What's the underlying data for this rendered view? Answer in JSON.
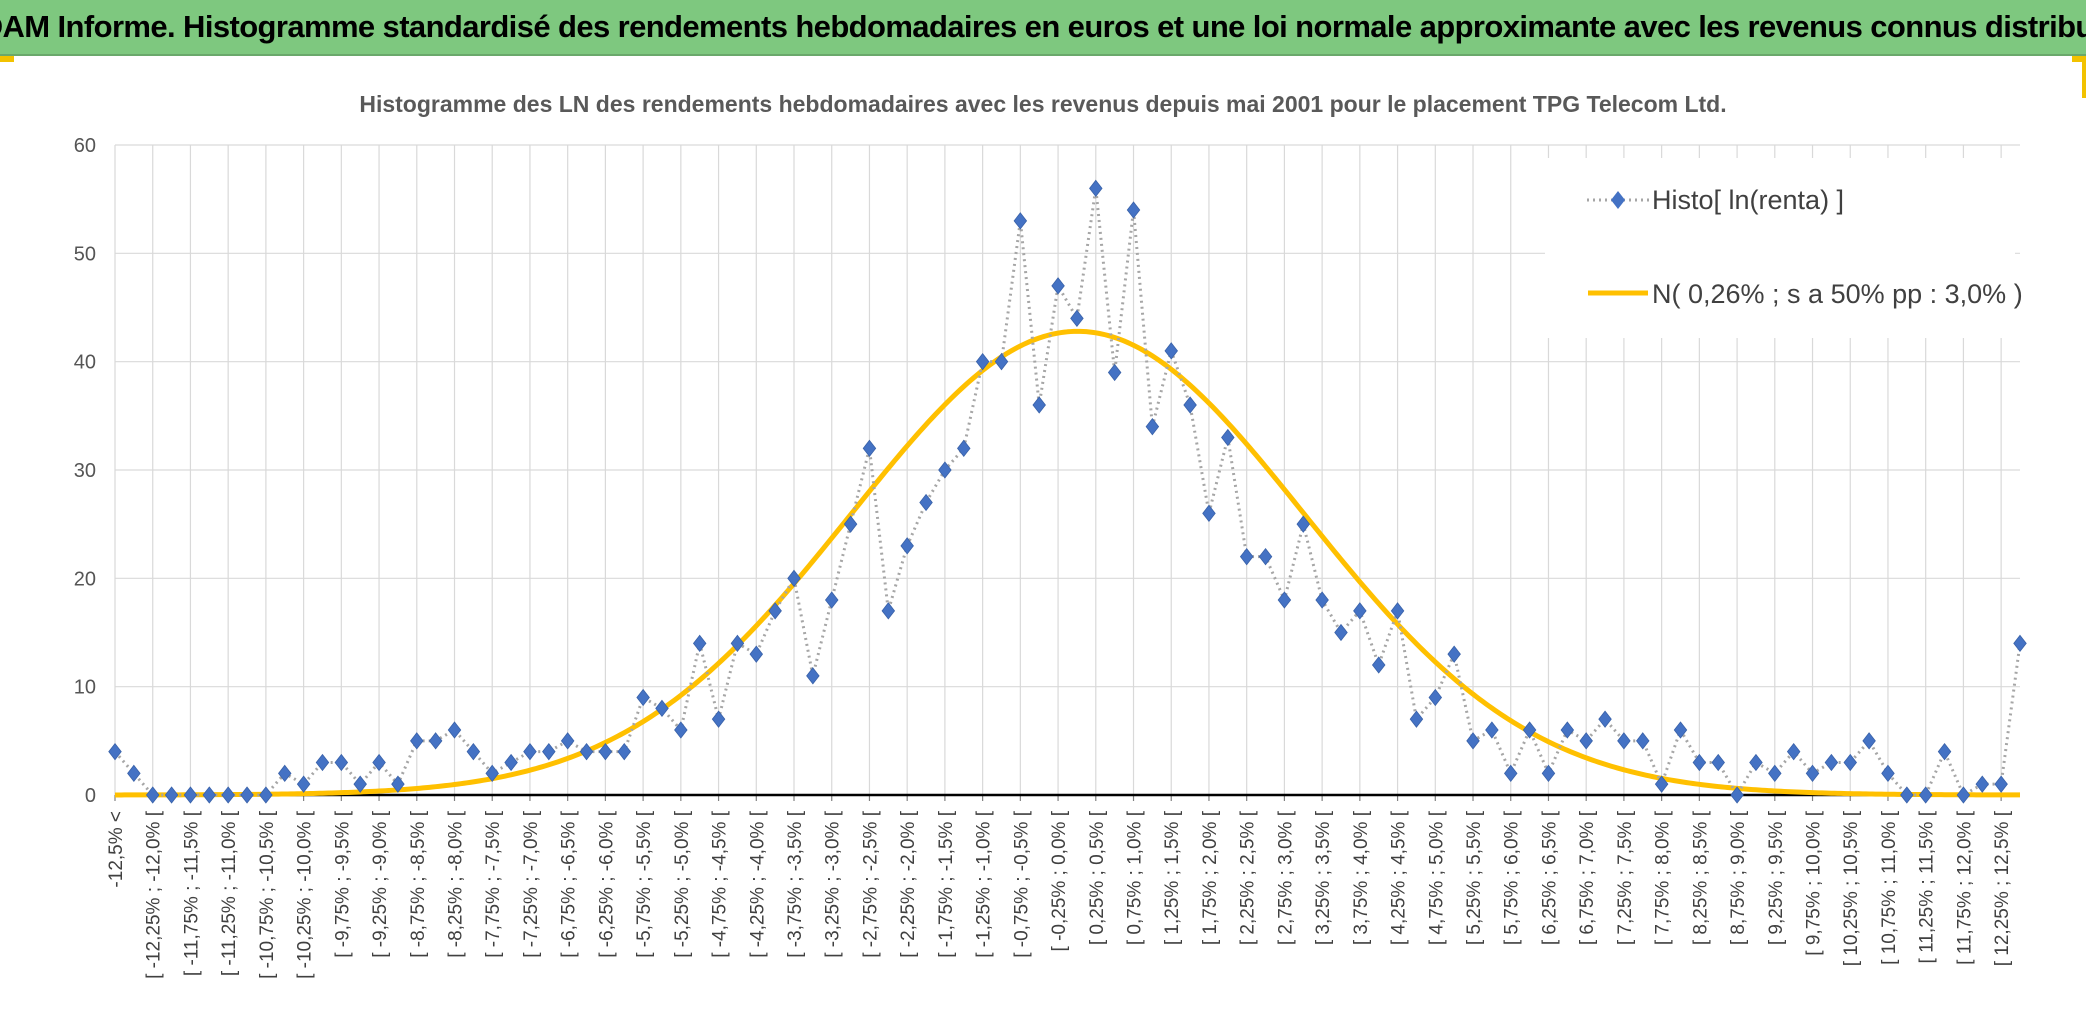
{
  "banner": {
    "title": "ADAM Informe. Histogramme standardisé des rendements hebdomadaires en euros et une loi normale approximante avec les revenus connus distribués",
    "background_color": "#7ec87f",
    "accent_color": "#f2c200"
  },
  "chart_data": {
    "type": "line",
    "title": "Histogramme des LN des rendements hebdomadaires avec les revenus depuis mai 2001 pour le placement TPG Telecom Ltd.",
    "xlabel": "",
    "ylabel": "",
    "ylim": [
      0,
      60
    ],
    "yticks": [
      0,
      10,
      20,
      30,
      40,
      50,
      60
    ],
    "grid": true,
    "legend_position": "top-right",
    "x_tick_labels": [
      "-12,5% <",
      "[ -12,25% ; -12,0% [",
      "[ -11,75% ; -11,5% [",
      "[ -11,25% ; -11,0% [",
      "[ -10,75% ; -10,5% [",
      "[ -10,25% ; -10,0% [",
      "[ -9,75% ; -9,5% [",
      "[ -9,25% ; -9,0% [",
      "[ -8,75% ; -8,5% [",
      "[ -8,25% ; -8,0% [",
      "[ -7,75% ; -7,5% [",
      "[ -7,25% ; -7,0% [",
      "[ -6,75% ; -6,5% [",
      "[ -6,25% ; -6,0% [",
      "[ -5,75% ; -5,5% [",
      "[ -5,25% ; -5,0% [",
      "[ -4,75% ; -4,5% [",
      "[ -4,25% ; -4,0% [",
      "[ -3,75% ; -3,5% [",
      "[ -3,25% ; -3,0% [",
      "[ -2,75% ; -2,5% [",
      "[ -2,25% ; -2,0% [",
      "[ -1,75% ; -1,5% [",
      "[ -1,25% ; -1,0% [",
      "[ -0,75% ; -0,5% [",
      "[ -0,25% ; 0,0% [",
      "[ 0,25% ; 0,5% [",
      "[ 0,75% ; 1,0% [",
      "[ 1,25% ; 1,5% [",
      "[ 1,75% ; 2,0% [",
      "[ 2,25% ; 2,5% [",
      "[ 2,75% ; 3,0% [",
      "[ 3,25% ; 3,5% [",
      "[ 3,75% ; 4,0% [",
      "[ 4,25% ; 4,5% [",
      "[ 4,75% ; 5,0% [",
      "[ 5,25% ; 5,5% [",
      "[ 5,75% ; 6,0% [",
      "[ 6,25% ; 6,5% [",
      "[ 6,75% ; 7,0% [",
      "[ 7,25% ; 7,5% [",
      "[ 7,75% ; 8,0% [",
      "[ 8,25% ; 8,5% [",
      "[ 8,75% ; 9,0% [",
      "[ 9,25% ; 9,5% [",
      "[ 9,75% ; 10,0% [",
      "[ 10,25% ; 10,5% [",
      "[ 10,75% ; 11,0% [",
      "[ 11,25% ; 11,5% [",
      "[ 11,75% ; 12,0% [",
      "[ 12,25% ; 12,5% ["
    ],
    "series": [
      {
        "name": "Histo[ ln(renta) ]",
        "style": "dotted-line-diamond-markers",
        "line_color": "#a6a6a6",
        "marker_color": "#4472c4",
        "values": [
          4,
          2,
          0,
          0,
          0,
          0,
          0,
          0,
          0,
          2,
          1,
          3,
          3,
          1,
          3,
          1,
          5,
          5,
          6,
          4,
          2,
          3,
          4,
          4,
          5,
          4,
          4,
          4,
          9,
          8,
          6,
          14,
          7,
          14,
          13,
          17,
          20,
          11,
          18,
          25,
          32,
          17,
          23,
          27,
          30,
          32,
          40,
          40,
          53,
          36,
          47,
          44,
          56,
          39,
          54,
          34,
          41,
          36,
          26,
          33,
          22,
          22,
          18,
          25,
          18,
          15,
          17,
          12,
          17,
          7,
          9,
          13,
          5,
          6,
          2,
          6,
          2,
          6,
          5,
          7,
          5,
          5,
          1,
          6,
          3,
          3,
          0,
          3,
          2,
          4,
          2,
          3,
          3,
          5,
          2,
          0,
          0,
          4,
          0,
          1,
          1,
          14
        ]
      },
      {
        "name": "N( 0,26% ; s a 50% pp : 3,0% )",
        "style": "solid-line",
        "line_color": "#ffc000",
        "distribution": {
          "mean_percent": 0.26,
          "sd_percent": 3.0,
          "peak": 42.8
        }
      }
    ]
  }
}
